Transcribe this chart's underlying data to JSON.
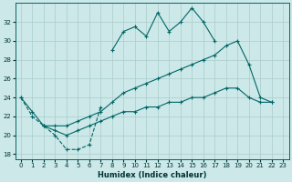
{
  "xlabel": "Humidex (Indice chaleur)",
  "background_color": "#cce8e8",
  "grid_color": "#aacccc",
  "line_color": "#006666",
  "x_values": [
    0,
    1,
    2,
    3,
    4,
    5,
    6,
    7,
    8,
    9,
    10,
    11,
    12,
    13,
    14,
    15,
    16,
    17,
    18,
    19,
    20,
    21,
    22,
    23
  ],
  "line1_y": [
    24,
    22,
    21,
    20,
    18.5,
    18.5,
    19,
    23,
    null,
    null,
    null,
    null,
    null,
    null,
    null,
    null,
    null,
    null,
    null,
    null,
    null,
    null,
    null,
    null
  ],
  "line2_y": [
    null,
    null,
    null,
    null,
    null,
    null,
    null,
    null,
    29,
    31,
    31.5,
    30.5,
    33,
    31,
    32,
    33.5,
    32,
    30,
    null,
    null,
    null,
    null,
    null,
    null
  ],
  "line3_y": [
    24,
    22.5,
    21,
    21,
    21,
    21.5,
    22,
    22.5,
    23.5,
    24.5,
    25,
    25.5,
    26,
    26.5,
    27,
    27.5,
    28,
    28.5,
    29.5,
    30,
    27.5,
    24,
    23.5,
    null
  ],
  "line4_y": [
    null,
    null,
    21,
    20.5,
    20,
    20.5,
    21,
    21.5,
    22,
    22.5,
    22.5,
    23,
    23,
    23.5,
    23.5,
    24,
    24,
    24.5,
    25,
    25,
    24,
    23.5,
    23.5,
    null
  ],
  "ylim": [
    17.5,
    34
  ],
  "xlim": [
    -0.5,
    23.5
  ],
  "yticks": [
    18,
    20,
    22,
    24,
    26,
    28,
    30,
    32
  ],
  "xticks": [
    0,
    1,
    2,
    3,
    4,
    5,
    6,
    7,
    8,
    9,
    10,
    11,
    12,
    13,
    14,
    15,
    16,
    17,
    18,
    19,
    20,
    21,
    22,
    23
  ]
}
